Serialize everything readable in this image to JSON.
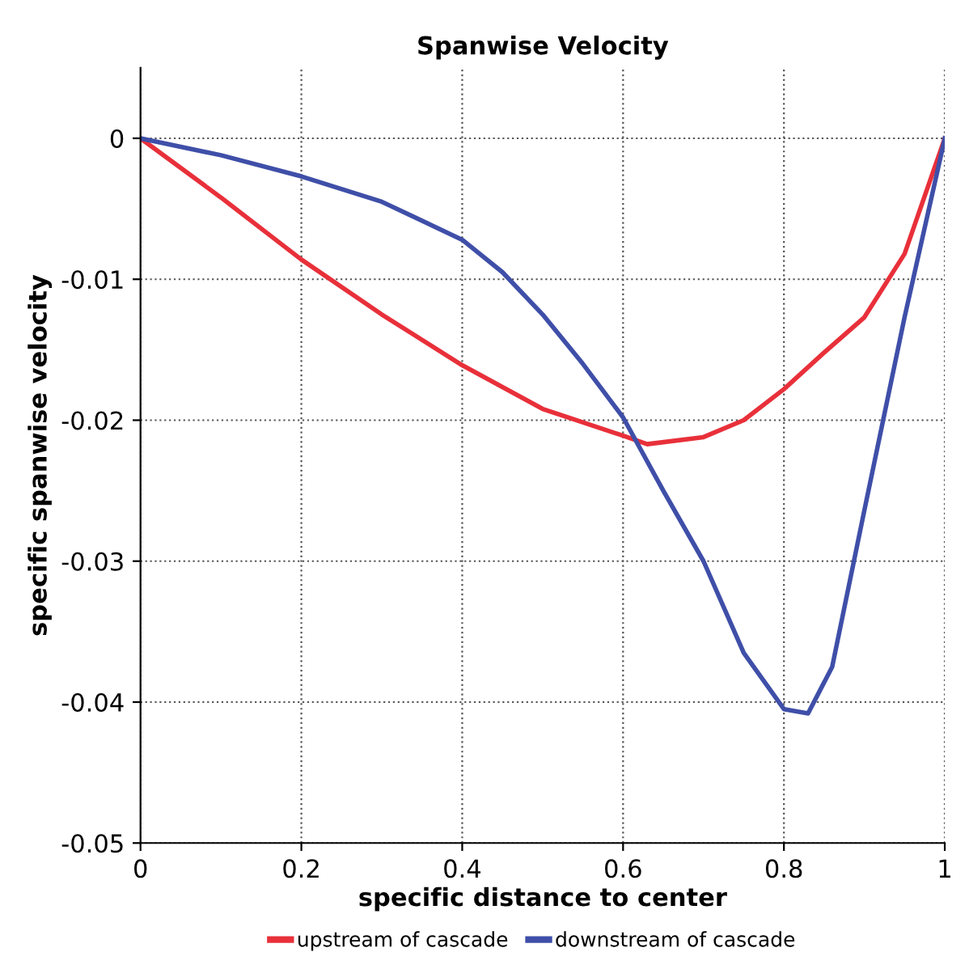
{
  "chart_data": {
    "type": "line",
    "title": "Spanwise Velocity",
    "xlabel": "specific distance to center",
    "ylabel": "specific spanwise velocity",
    "xlim": [
      0,
      1
    ],
    "ylim": [
      -0.05,
      0.005
    ],
    "xticks": [
      0,
      0.2,
      0.4,
      0.6,
      0.8,
      1
    ],
    "yticks": [
      -0.05,
      -0.04,
      -0.03,
      -0.02,
      -0.01,
      0
    ],
    "grid": true,
    "legend": "bottom",
    "line_style": "solid",
    "marker": "none",
    "series": [
      {
        "name": "upstream of cascade",
        "color": "#e8303a",
        "x": [
          0,
          0.1,
          0.2,
          0.3,
          0.4,
          0.5,
          0.6,
          0.63,
          0.7,
          0.75,
          0.8,
          0.85,
          0.9,
          0.95,
          1
        ],
        "values": [
          0,
          -0.0042,
          -0.0086,
          -0.0125,
          -0.0161,
          -0.0192,
          -0.0211,
          -0.0217,
          -0.0212,
          -0.02,
          -0.0178,
          -0.0152,
          -0.0127,
          -0.0082,
          0
        ]
      },
      {
        "name": "downstream of cascade",
        "color": "#3f4fa8",
        "x": [
          0,
          0.1,
          0.2,
          0.3,
          0.4,
          0.45,
          0.5,
          0.55,
          0.6,
          0.65,
          0.7,
          0.75,
          0.8,
          0.83,
          0.86,
          0.9,
          0.95,
          1
        ],
        "values": [
          0,
          -0.0012,
          -0.0027,
          -0.0045,
          -0.0072,
          -0.0095,
          -0.0125,
          -0.016,
          -0.0198,
          -0.025,
          -0.03,
          -0.0365,
          -0.0405,
          -0.0408,
          -0.0375,
          -0.0264,
          -0.0127,
          0
        ]
      }
    ]
  }
}
